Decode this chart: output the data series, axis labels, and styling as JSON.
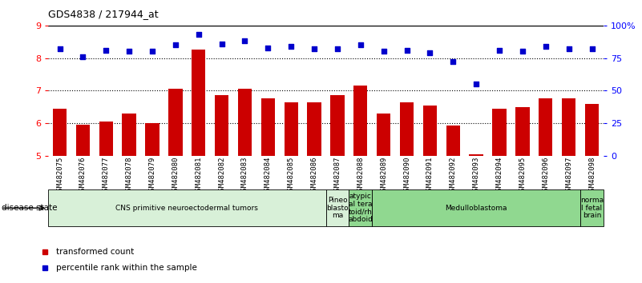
{
  "title": "GDS4838 / 217944_at",
  "samples": [
    "GSM482075",
    "GSM482076",
    "GSM482077",
    "GSM482078",
    "GSM482079",
    "GSM482080",
    "GSM482081",
    "GSM482082",
    "GSM482083",
    "GSM482084",
    "GSM482085",
    "GSM482086",
    "GSM482087",
    "GSM482088",
    "GSM482089",
    "GSM482090",
    "GSM482091",
    "GSM482092",
    "GSM482093",
    "GSM482094",
    "GSM482095",
    "GSM482096",
    "GSM482097",
    "GSM482098"
  ],
  "bar_values": [
    6.45,
    5.95,
    6.05,
    6.3,
    6.0,
    7.05,
    8.25,
    6.85,
    7.05,
    6.75,
    6.65,
    6.65,
    6.85,
    7.15,
    6.3,
    6.65,
    6.55,
    5.92,
    5.05,
    6.45,
    6.5,
    6.75,
    6.75,
    6.6
  ],
  "percentile_values": [
    82,
    76,
    81,
    80,
    80,
    85,
    93,
    86,
    88,
    83,
    84,
    82,
    82,
    85,
    80,
    81,
    79,
    72,
    55,
    81,
    80,
    84,
    82,
    82
  ],
  "ylim_left": [
    5,
    9
  ],
  "ylim_right": [
    0,
    100
  ],
  "yticks_left": [
    5,
    6,
    7,
    8,
    9
  ],
  "yticks_right": [
    0,
    25,
    50,
    75,
    100
  ],
  "ytick_labels_right": [
    "0",
    "25",
    "50",
    "75",
    "100%"
  ],
  "bar_color": "#cc0000",
  "dot_color": "#0000cc",
  "bar_width": 0.6,
  "disease_groups": [
    {
      "label": "CNS primitive neuroectodermal tumors",
      "start": 0,
      "end": 12,
      "color": "#d8f0d8"
    },
    {
      "label": "Pineo\nblasto\nma",
      "start": 12,
      "end": 13,
      "color": "#d8f0d8"
    },
    {
      "label": "atypic\nal tera\ntoid/rh\nabdoid",
      "start": 13,
      "end": 14,
      "color": "#90d890"
    },
    {
      "label": "Medulloblastoma",
      "start": 14,
      "end": 23,
      "color": "#90d890"
    },
    {
      "label": "norma\nl fetal\nbrain",
      "start": 23,
      "end": 24,
      "color": "#90d890"
    }
  ],
  "legend_items": [
    {
      "label": "transformed count",
      "color": "#cc0000"
    },
    {
      "label": "percentile rank within the sample",
      "color": "#0000cc"
    }
  ]
}
